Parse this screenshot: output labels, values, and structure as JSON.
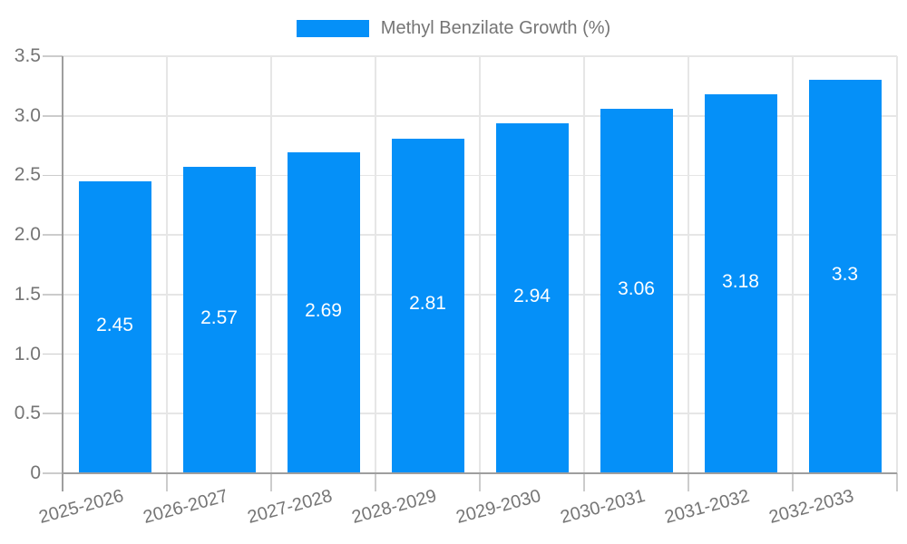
{
  "legend": {
    "label": "Methyl Benzilate Growth (%)"
  },
  "colors": {
    "bar": "#0590F8",
    "axis_label": "#757575",
    "value_label": "#FFFFFF",
    "gridline": "#E6E6E6",
    "tick": "#CCCCCC",
    "axis_line": "#9E9E9E",
    "background": "#FFFFFF"
  },
  "chart_data": {
    "type": "bar",
    "title": "",
    "series_name": "Methyl Benzilate Growth (%)",
    "categories": [
      "2025-2026",
      "2026-2027",
      "2027-2028",
      "2028-2029",
      "2029-2030",
      "2030-2031",
      "2031-2032",
      "2032-2033"
    ],
    "values": [
      2.45,
      2.57,
      2.69,
      2.81,
      2.94,
      3.06,
      3.18,
      3.3
    ],
    "value_labels": [
      "2.45",
      "2.57",
      "2.69",
      "2.81",
      "2.94",
      "3.06",
      "3.18",
      "3.3"
    ],
    "xlabel": "",
    "ylabel": "",
    "ylim": [
      0,
      3.5
    ],
    "yticks": [
      0,
      0.5,
      1,
      1.5,
      2,
      2.5,
      3,
      3.5
    ],
    "ytick_labels": [
      "0",
      "0.5",
      "1.0",
      "1.5",
      "2.0",
      "2.5",
      "3.0",
      "3.5"
    ],
    "grid": "both",
    "legend_position": "top-center",
    "bar_label_position": "inside-center",
    "x_label_rotation_deg": -15
  }
}
